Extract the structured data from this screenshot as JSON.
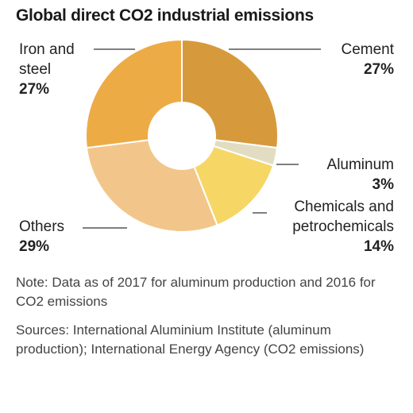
{
  "chart_data": {
    "type": "pie",
    "title": "Global direct CO2 industrial emissions",
    "categories": [
      "Cement",
      "Aluminum",
      "Chemicals and petrochemicals",
      "Others",
      "Iron and steel"
    ],
    "values": [
      27,
      3,
      14,
      29,
      27
    ],
    "value_labels": [
      "27%",
      "3%",
      "14%",
      "29%",
      "27%"
    ],
    "unit": "%",
    "donut": true,
    "colors": [
      "#D69A3C",
      "#E2DDC2",
      "#F6D766",
      "#F2C68A",
      "#EDAB45"
    ],
    "label_lines": {
      "iron_and_steel": [
        "Iron and",
        "steel"
      ],
      "chemicals": [
        "Chemicals and",
        "petrochemicals"
      ]
    },
    "note": "Note: Data as of 2017 for aluminum production and 2016 for CO2 emissions",
    "sources": "Sources: International Aluminium Institute (aluminum production); International Energy Agency (CO2 emissions)"
  }
}
